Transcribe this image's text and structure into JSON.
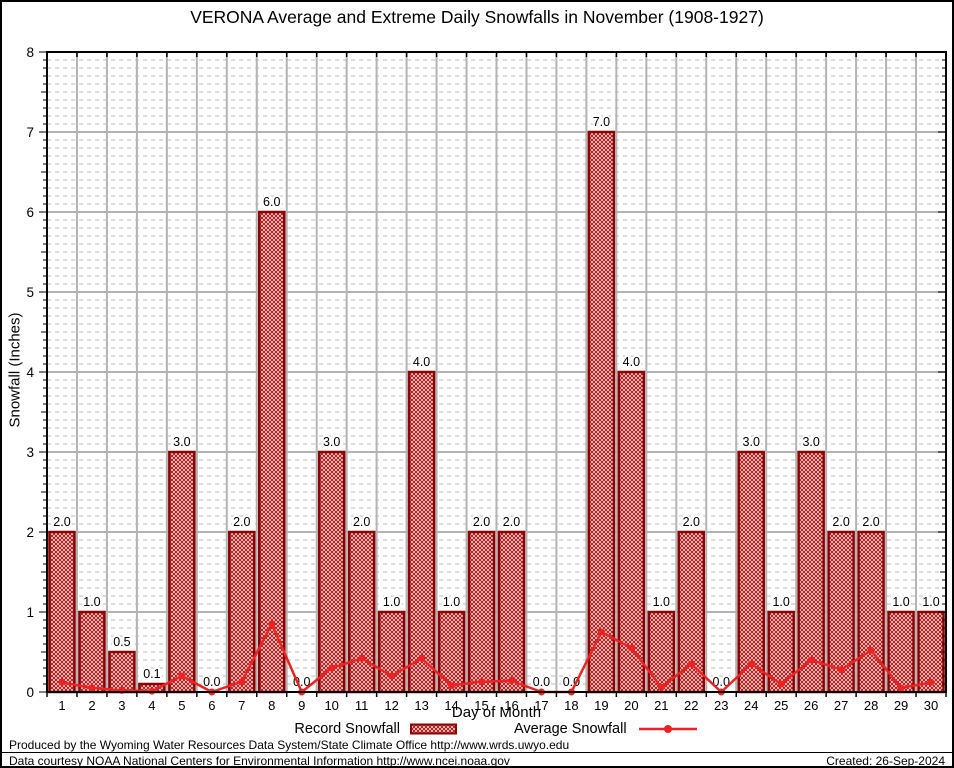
{
  "chart_data": {
    "type": "bar",
    "title": "VERONA Average and Extreme Daily Snowfalls in November (1908-1927)",
    "xlabel": "Day of Month",
    "ylabel": "Snowfall (Inches)",
    "ylim": [
      0,
      8
    ],
    "y_major_ticks": [
      0,
      1,
      2,
      3,
      4,
      5,
      6,
      7,
      8
    ],
    "y_minor_step": 0.1,
    "grid": true,
    "legend_position": "bottom",
    "x": [
      1,
      2,
      3,
      4,
      5,
      6,
      7,
      8,
      9,
      10,
      11,
      12,
      13,
      14,
      15,
      16,
      17,
      18,
      19,
      20,
      21,
      22,
      23,
      24,
      25,
      26,
      27,
      28,
      29,
      30
    ],
    "series": [
      {
        "name": "Record Snowfall",
        "type": "bar",
        "values": [
          2.0,
          1.0,
          0.5,
          0.1,
          3.0,
          0.0,
          2.0,
          6.0,
          0.0,
          3.0,
          2.0,
          1.0,
          4.0,
          1.0,
          2.0,
          2.0,
          0.0,
          0.0,
          7.0,
          4.0,
          1.0,
          2.0,
          0.0,
          3.0,
          1.0,
          3.0,
          2.0,
          2.0,
          1.0,
          1.0
        ]
      },
      {
        "name": "Average Snowfall",
        "type": "line",
        "values": [
          0.12,
          0.05,
          0.02,
          0.01,
          0.2,
          0.0,
          0.13,
          0.85,
          0.0,
          0.3,
          0.42,
          0.2,
          0.42,
          0.08,
          0.13,
          0.14,
          0.0,
          0.0,
          0.75,
          0.55,
          0.06,
          0.35,
          0.0,
          0.35,
          0.1,
          0.4,
          0.28,
          0.52,
          0.05,
          0.12
        ]
      }
    ]
  },
  "footer": {
    "line1": "Produced by the Wyoming Water Resources Data System/State Climate Office http://www.wrds.uwyo.edu",
    "line2": "Data courtesy NOAA National Centers for Environmental Information http://www.ncei.noaa.gov",
    "created": "Created: 26-Sep-2024"
  },
  "colors": {
    "bar_border": "#8b0000",
    "bar_hatch": "#b22222",
    "line": "#ee2222",
    "grid_major": "#b3b3b3",
    "grid_minor": "#bbbbbb",
    "axis": "#000000"
  }
}
